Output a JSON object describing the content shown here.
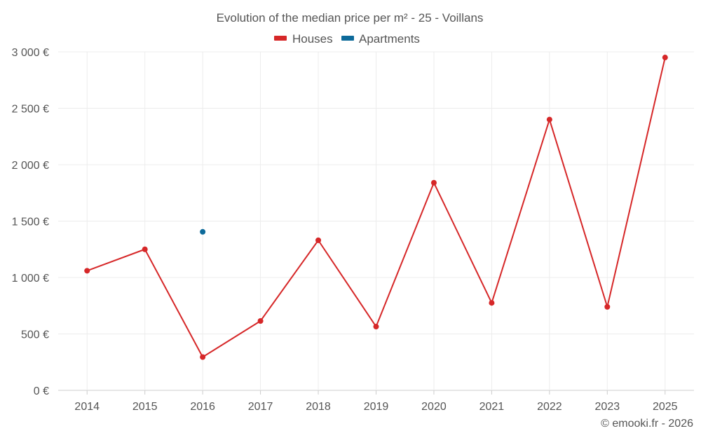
{
  "chart_data": {
    "type": "line",
    "title": "Evolution of the median price per m² - 25 - Voillans",
    "categories": [
      "2014",
      "2015",
      "2016",
      "2017",
      "2018",
      "2019",
      "2020",
      "2021",
      "2022",
      "2023",
      "2025"
    ],
    "series": [
      {
        "name": "Houses",
        "color": "#d62728",
        "values": [
          1060,
          1250,
          295,
          615,
          1330,
          565,
          1840,
          775,
          2400,
          740,
          2950
        ]
      },
      {
        "name": "Apartments",
        "color": "#0d6a9a",
        "values": [
          null,
          null,
          1405,
          null,
          null,
          null,
          null,
          null,
          null,
          null,
          null
        ]
      }
    ],
    "ylim": [
      0,
      3000
    ],
    "yticks": [
      0,
      500,
      1000,
      1500,
      2000,
      2500,
      3000
    ],
    "ytick_labels": [
      "0 €",
      "500 €",
      "1 000 €",
      "1 500 €",
      "2 000 €",
      "2 500 €",
      "3 000 €"
    ],
    "xlabel": "",
    "ylabel": "",
    "grid": true,
    "legend_position": "top-center"
  },
  "credit": "© emooki.fr - 2026"
}
